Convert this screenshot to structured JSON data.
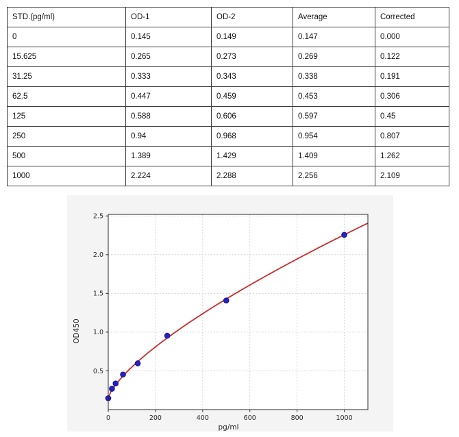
{
  "table": {
    "headers": [
      "STD.(pg/ml)",
      "OD-1",
      "OD-2",
      "Average",
      "Corrected"
    ],
    "rows": [
      [
        "0",
        "0.145",
        "0.149",
        "0.147",
        "0.000"
      ],
      [
        "15.625",
        "0.265",
        "0.273",
        "0.269",
        "0.122"
      ],
      [
        "31.25",
        "0.333",
        "0.343",
        "0.338",
        "0.191"
      ],
      [
        "62.5",
        "0.447",
        "0.459",
        "0.453",
        "0.306"
      ],
      [
        "125",
        "0.588",
        "0.606",
        "0.597",
        "0.45"
      ],
      [
        "250",
        "0.94",
        "0.968",
        "0.954",
        "0.807"
      ],
      [
        "500",
        "1.389",
        "1.429",
        "1.409",
        "1.262"
      ],
      [
        "1000",
        "2.224",
        "2.288",
        "2.256",
        "2.109"
      ]
    ]
  },
  "chart_data": {
    "type": "scatter",
    "title": "",
    "xlabel": "pg/ml",
    "ylabel": "OD450",
    "x": [
      0,
      15.625,
      31.25,
      62.5,
      125,
      250,
      500,
      1000
    ],
    "y": [
      0.147,
      0.269,
      0.338,
      0.453,
      0.597,
      0.954,
      1.409,
      2.256
    ],
    "xlim": [
      0,
      1100
    ],
    "ylim": [
      0,
      2.52
    ],
    "xticks": [
      0,
      200,
      400,
      600,
      800,
      1000
    ],
    "xtick_labels": [
      "0",
      "200",
      "400",
      "600",
      "800",
      "1000"
    ],
    "yticks": [
      0.5,
      1.0,
      1.5,
      2.0,
      2.5
    ],
    "ytick_labels": [
      "0.5",
      "1.0",
      "1.5",
      "2.0",
      "2.5"
    ],
    "grid": true,
    "legend": "none",
    "fit_curve": {
      "type": "power",
      "offset": 0.147,
      "a": 0.0146,
      "b": 0.72
    },
    "colors": {
      "figure_bg": "#f4f4f4",
      "plot_bg": "#ffffff",
      "grid": "#c9c9c9",
      "spine": "#2b2b2b",
      "tick_text": "#262626",
      "point_fill": "#2621c7",
      "point_edge": "#17137f",
      "curve": "#cc2b2b"
    }
  }
}
